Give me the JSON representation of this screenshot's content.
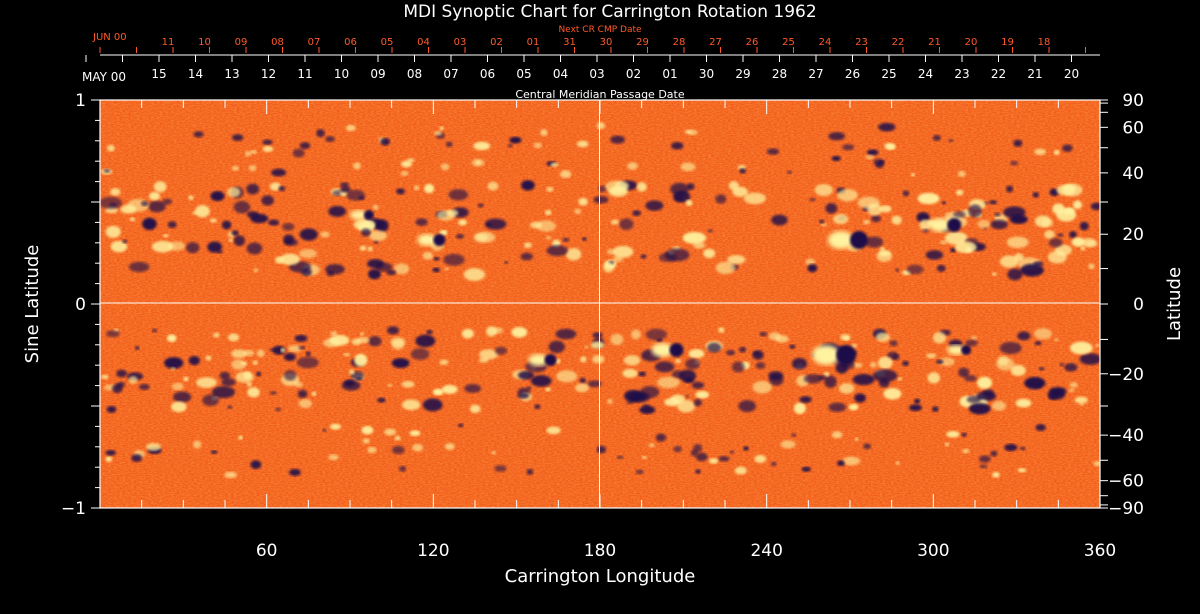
{
  "chart_data": {
    "type": "heatmap",
    "title": "MDI Synoptic Chart for Carrington Rotation 1962",
    "xlabel": "Carrington Longitude",
    "ylabel_left": "Sine Latitude",
    "ylabel_right": "Latitude",
    "xlim": [
      0,
      360
    ],
    "ylim": [
      -1,
      1
    ],
    "x_ticks": [
      60,
      120,
      180,
      240,
      300,
      360
    ],
    "y_ticks_left": [
      -1,
      0,
      1
    ],
    "y_ticks_right": [
      -90,
      -60,
      -40,
      -20,
      0,
      20,
      40,
      60,
      90
    ],
    "top_axis_label": "Central Meridian Passage Date",
    "top_axis_month_label": "MAY 00",
    "top_axis_dates": [
      "15",
      "14",
      "13",
      "12",
      "11",
      "10",
      "09",
      "08",
      "07",
      "06",
      "05",
      "04",
      "03",
      "02",
      "01",
      "30",
      "29",
      "28",
      "27",
      "26",
      "25",
      "24",
      "23",
      "22",
      "21",
      "20"
    ],
    "next_axis_label": "Next CR CMP Date",
    "next_axis_month_label": "JUN 00",
    "next_axis_dates": [
      "11",
      "10",
      "09",
      "08",
      "07",
      "06",
      "05",
      "04",
      "03",
      "02",
      "01",
      "31",
      "30",
      "29",
      "28",
      "27",
      "26",
      "25",
      "24",
      "23",
      "22",
      "21",
      "20",
      "19",
      "18"
    ],
    "color_background": "#f25a1b",
    "color_positive": "#fff3a0",
    "color_negative": "#1a0f4a",
    "grid_lines": [
      "longitude 180",
      "sine latitude 0"
    ]
  }
}
